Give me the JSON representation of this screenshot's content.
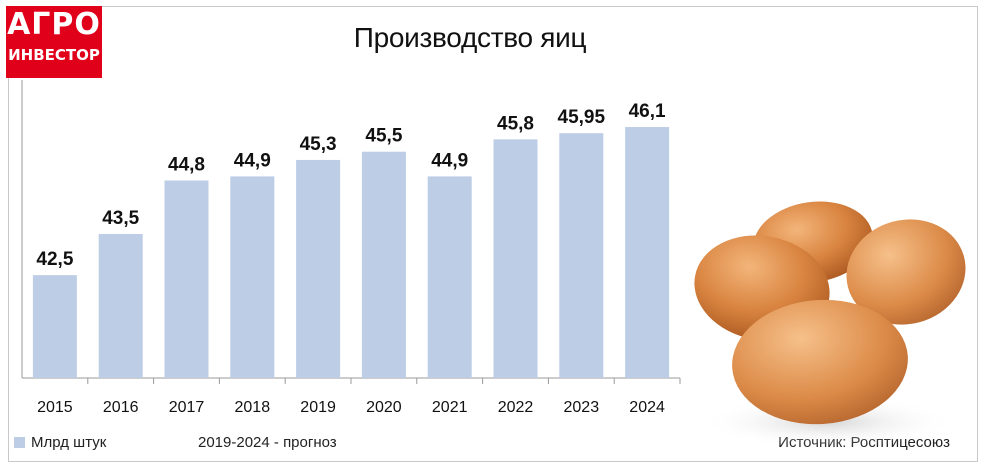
{
  "logo": {
    "line1": "АГРО",
    "line2": "ИНВЕСТОР"
  },
  "colors": {
    "bar": "#bccde5",
    "logo_bg": "#e0001a",
    "egg": "#d9823f"
  },
  "chart_data": {
    "type": "bar",
    "title": "Производство яиц",
    "categories": [
      "2015",
      "2016",
      "2017",
      "2018",
      "2019",
      "2020",
      "2021",
      "2022",
      "2023",
      "2024"
    ],
    "values": [
      42.5,
      43.5,
      44.8,
      44.9,
      45.3,
      45.5,
      44.9,
      45.8,
      45.95,
      46.1
    ],
    "value_labels": [
      "42,5",
      "43,5",
      "44,8",
      "44,9",
      "45,3",
      "45,5",
      "44,9",
      "45,8",
      "45,95",
      "46,1"
    ],
    "legend": "Млрд штук",
    "note": "2019-2024 - прогноз",
    "source": "Источник: Росптицесоюз"
  }
}
